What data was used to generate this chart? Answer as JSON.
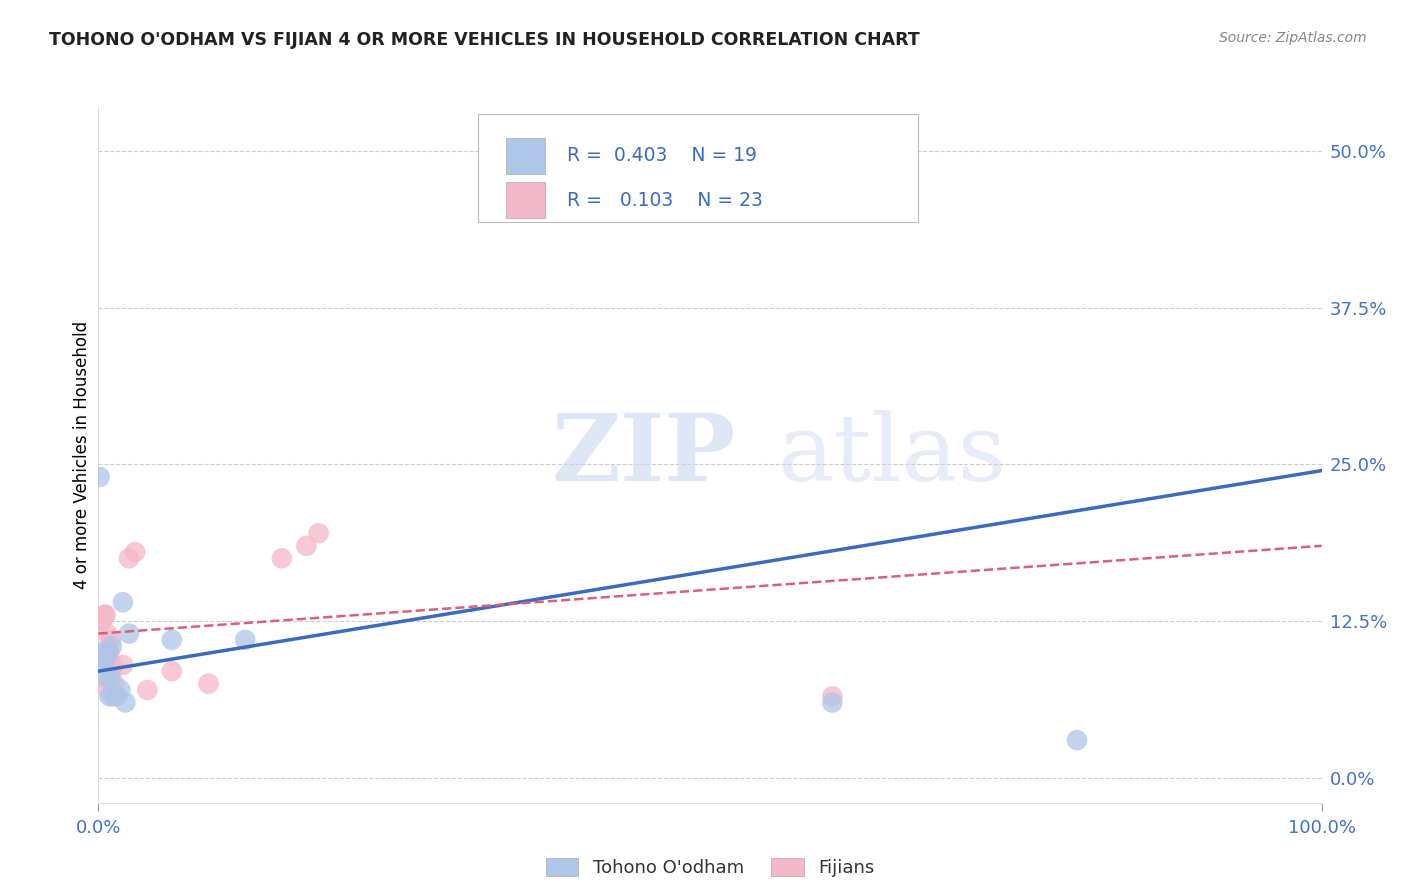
{
  "title": "TOHONO O'ODHAM VS FIJIAN 4 OR MORE VEHICLES IN HOUSEHOLD CORRELATION CHART",
  "source": "Source: ZipAtlas.com",
  "ylabel_label": "4 or more Vehicles in Household",
  "legend_blue_r": "0.403",
  "legend_blue_n": "19",
  "legend_pink_r": "0.103",
  "legend_pink_n": "23",
  "legend_blue_label": "Tohono O'odham",
  "legend_pink_label": "Fijians",
  "blue_color": "#aec6e8",
  "pink_color": "#f4b8c8",
  "blue_line_color": "#3a6bbf",
  "pink_line_color": "#d9607a",
  "watermark_zip": "ZIP",
  "watermark_atlas": "atlas",
  "blue_scatter_x": [
    0.002,
    0.004,
    0.006,
    0.007,
    0.008,
    0.009,
    0.01,
    0.011,
    0.012,
    0.015,
    0.018,
    0.02,
    0.022,
    0.025,
    0.06,
    0.12,
    0.6,
    0.8,
    0.001
  ],
  "blue_scatter_y": [
    0.1,
    0.09,
    0.095,
    0.08,
    0.1,
    0.065,
    0.08,
    0.105,
    0.065,
    0.065,
    0.07,
    0.14,
    0.06,
    0.115,
    0.11,
    0.11,
    0.06,
    0.03,
    0.24
  ],
  "pink_scatter_x": [
    0.001,
    0.002,
    0.003,
    0.004,
    0.005,
    0.006,
    0.007,
    0.008,
    0.009,
    0.01,
    0.011,
    0.012,
    0.013,
    0.02,
    0.025,
    0.03,
    0.04,
    0.06,
    0.09,
    0.15,
    0.17,
    0.18,
    0.6
  ],
  "pink_scatter_y": [
    0.095,
    0.08,
    0.125,
    0.1,
    0.13,
    0.13,
    0.115,
    0.07,
    0.1,
    0.11,
    0.085,
    0.09,
    0.075,
    0.09,
    0.175,
    0.18,
    0.07,
    0.085,
    0.075,
    0.175,
    0.185,
    0.195,
    0.065
  ],
  "xlim": [
    0.0,
    1.0
  ],
  "ylim": [
    -0.02,
    0.535
  ],
  "blue_trendline_x": [
    0.0,
    1.0
  ],
  "blue_trendline_y": [
    0.085,
    0.245
  ],
  "pink_trendline_x": [
    0.0,
    1.0
  ],
  "pink_trendline_y": [
    0.115,
    0.185
  ],
  "yticks": [
    0.0,
    0.125,
    0.25,
    0.375,
    0.5
  ],
  "ytick_labels": [
    "0.0%",
    "12.5%",
    "25.0%",
    "37.5%",
    "50.0%"
  ],
  "xtick_labels_show": [
    "0.0%",
    "100.0%"
  ],
  "xticks_show": [
    0.0,
    1.0
  ]
}
